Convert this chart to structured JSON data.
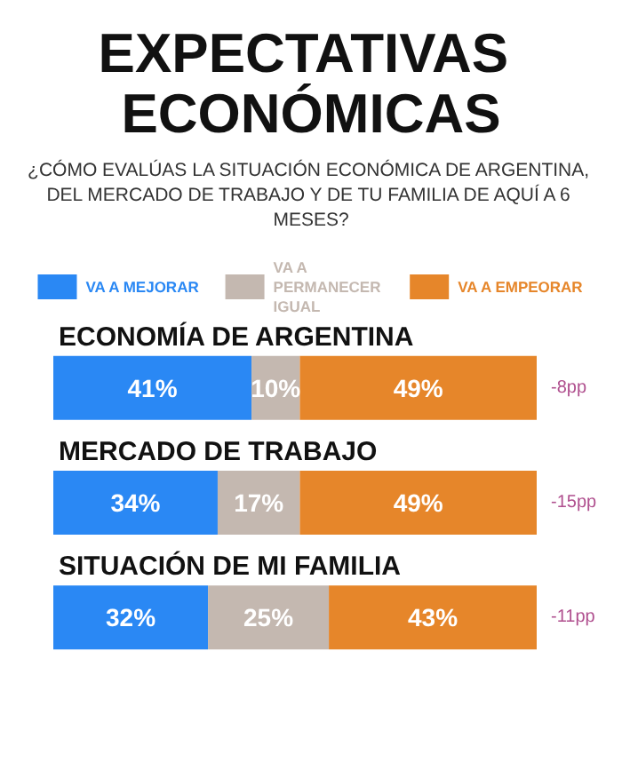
{
  "chart_data": {
    "type": "bar",
    "orientation": "horizontal",
    "stacked": true,
    "title": "EXPECTATIVAS ECONÓMICAS",
    "subtitle": "¿CÓMO EVALÚAS LA SITUACIÓN ECONÓMICA DE ARGENTINA, DEL MERCADO DE TRABAJO Y DE TU FAMILIA DE AQUÍ A 6 MESES?",
    "categories": [
      "ECONOMÍA DE ARGENTINA",
      "MERCADO DE TRABAJO",
      "SITUACIÓN DE MI FAMILIA"
    ],
    "series": [
      {
        "name": "VA A MEJORAR",
        "color": "#2a88f4",
        "values": [
          41,
          34,
          32
        ],
        "value_labels": [
          "41%",
          "34%",
          "32%"
        ]
      },
      {
        "name": "VA A PERMANECER IGUAL",
        "color": "#c4b8b0",
        "values": [
          10,
          17,
          25
        ],
        "value_labels": [
          "10%",
          "17%",
          "25%"
        ]
      },
      {
        "name": "VA A EMPEORAR",
        "color": "#e6862a",
        "values": [
          49,
          49,
          43
        ],
        "value_labels": [
          "49%",
          "49%",
          "43%"
        ]
      }
    ],
    "legend": "top",
    "annotations": [
      "-8pp",
      "-15pp",
      "-11pp"
    ]
  }
}
